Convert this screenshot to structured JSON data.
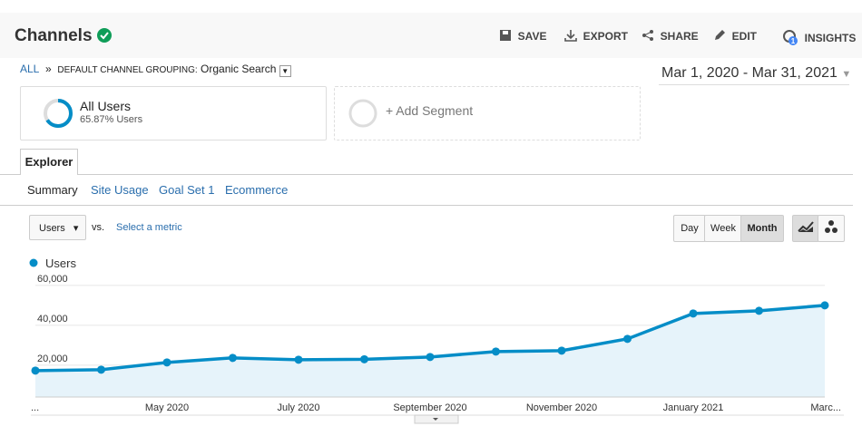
{
  "header": {
    "title": "Channels",
    "actions": [
      "SAVE",
      "EXPORT",
      "SHARE",
      "EDIT",
      "INSIGHTS"
    ],
    "insights_badge": "1"
  },
  "breadcrumb": {
    "all": "ALL",
    "separator": "»",
    "grouping": "DEFAULT CHANNEL GROUPING:",
    "value": "Organic Search"
  },
  "date_range": "Mar 1, 2020 - Mar 31, 2021",
  "segments": [
    {
      "name": "All Users",
      "detail": "65.87% Users"
    }
  ],
  "add_segment": "+ Add Segment",
  "tab": "Explorer",
  "subtabs": [
    "Summary",
    "Site Usage",
    "Goal Set 1",
    "Ecommerce"
  ],
  "controls": {
    "metric": "Users",
    "vs": "vs.",
    "select": "Select a metric",
    "periods": [
      "Day",
      "Week",
      "Month"
    ]
  },
  "chart_data": {
    "type": "line",
    "categories": [
      "...",
      null,
      "May 2020",
      null,
      "July 2020",
      null,
      "September 2020",
      null,
      "November 2020",
      null,
      "January 2021",
      null,
      "Marc..."
    ],
    "series": [
      {
        "name": "Users",
        "color": "#058dc7",
        "values": [
          17270,
          17730,
          21360,
          23640,
          22730,
          22950,
          24090,
          26820,
          27270,
          33180,
          45910,
          47270,
          50000
        ]
      }
    ],
    "ylim": [
      4000,
      64500
    ],
    "yticks": [
      {
        "value": 20000,
        "label": "20,000"
      },
      {
        "value": 40000,
        "label": "40,000"
      },
      {
        "value": 60000,
        "label": "60,000"
      }
    ],
    "grid": true,
    "area": true
  }
}
